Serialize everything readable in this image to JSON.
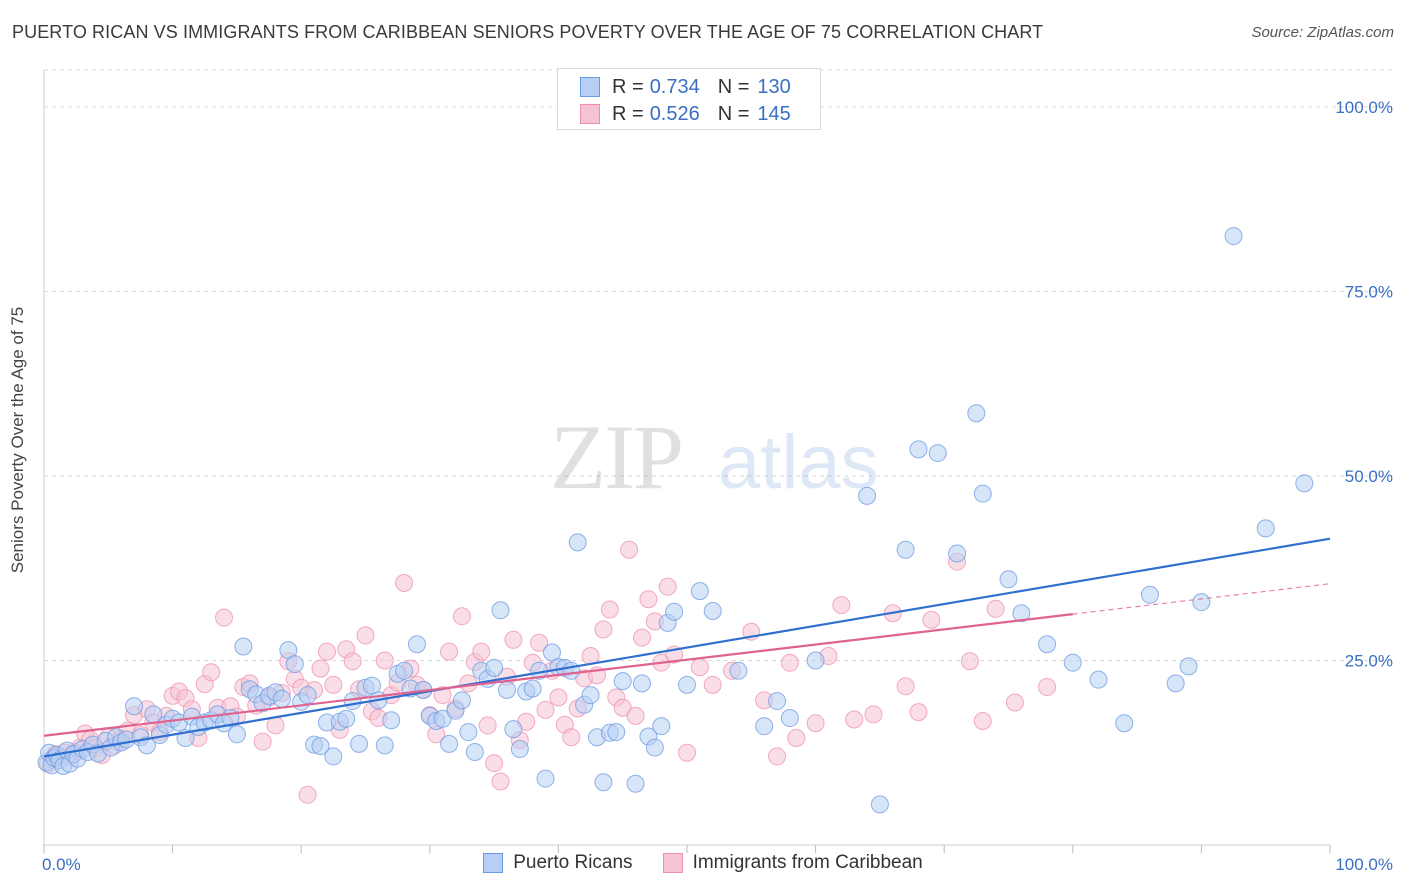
{
  "title": "PUERTO RICAN VS IMMIGRANTS FROM CARIBBEAN SENIORS POVERTY OVER THE AGE OF 75 CORRELATION CHART",
  "source": "Source: ZipAtlas.com",
  "watermark": {
    "zip": "ZIP",
    "atlas": "atlas"
  },
  "legend": {
    "rows": [
      {
        "r_label": "R =",
        "r_value": "0.734",
        "n_label": "N =",
        "n_value": "130"
      },
      {
        "r_label": "R =",
        "r_value": "0.526",
        "n_label": "N =",
        "n_value": "145"
      }
    ]
  },
  "bottom_legend": [
    "Puerto Ricans",
    "Immigrants from Caribbean"
  ],
  "colors": {
    "blue": "#6b9ae0",
    "blue_fill": "#b7cff4",
    "blue_line": "#2f6fcf",
    "pink": "#ee8fb0",
    "pink_fill": "#f6c3d4",
    "pink_line": "#e0628f",
    "axis_text": "#3a6fc4",
    "grid": "#d9d9d9"
  },
  "chart_data": {
    "type": "scatter",
    "title": "PUERTO RICAN VS IMMIGRANTS FROM CARIBBEAN SENIORS POVERTY OVER THE AGE OF 75 CORRELATION CHART",
    "xlabel": "",
    "ylabel": "Seniors Poverty Over the Age of 75",
    "xlim": [
      0,
      100
    ],
    "ylim": [
      0,
      105
    ],
    "x_tick_labels": [
      "0.0%",
      "100.0%"
    ],
    "y_tick_labels": [
      {
        "value": 100,
        "label": "100.0%"
      },
      {
        "value": 75,
        "label": "75.0%"
      },
      {
        "value": 50,
        "label": "50.0%"
      },
      {
        "value": 25,
        "label": "25.0%"
      }
    ],
    "grid": "horizontal dashed",
    "series": [
      {
        "name": "Puerto Ricans",
        "color": "#6b9ae0",
        "trend": {
          "x": [
            0,
            100
          ],
          "y": [
            12.0,
            41.5
          ],
          "dashed_from": null
        },
        "points": [
          [
            0.2,
            11.2
          ],
          [
            0.4,
            12.5
          ],
          [
            0.6,
            10.8
          ],
          [
            0.8,
            11.8
          ],
          [
            1.0,
            12.2
          ],
          [
            1.2,
            11.5
          ],
          [
            1.5,
            10.7
          ],
          [
            1.8,
            12.8
          ],
          [
            2.0,
            11.0
          ],
          [
            2.3,
            12.3
          ],
          [
            2.6,
            11.7
          ],
          [
            3.0,
            13.0
          ],
          [
            3.4,
            12.6
          ],
          [
            3.8,
            13.6
          ],
          [
            4.2,
            12.4
          ],
          [
            4.8,
            14.1
          ],
          [
            5.2,
            13.2
          ],
          [
            5.6,
            14.6
          ],
          [
            6.0,
            13.9
          ],
          [
            6.4,
            14.3
          ],
          [
            7.0,
            18.8
          ],
          [
            7.5,
            14.6
          ],
          [
            8.0,
            13.5
          ],
          [
            8.5,
            17.7
          ],
          [
            9.0,
            14.9
          ],
          [
            9.5,
            16.3
          ],
          [
            10.0,
            17.1
          ],
          [
            10.5,
            16.6
          ],
          [
            11.0,
            14.5
          ],
          [
            11.5,
            17.4
          ],
          [
            12.0,
            16.0
          ],
          [
            12.5,
            16.6
          ],
          [
            13.0,
            16.9
          ],
          [
            13.5,
            17.7
          ],
          [
            14.0,
            16.5
          ],
          [
            14.5,
            17.2
          ],
          [
            15.0,
            15.0
          ],
          [
            15.5,
            26.9
          ],
          [
            16.0,
            21.1
          ],
          [
            16.5,
            20.4
          ],
          [
            17.0,
            19.2
          ],
          [
            17.5,
            20.2
          ],
          [
            18.0,
            20.7
          ],
          [
            18.5,
            19.8
          ],
          [
            19.0,
            26.4
          ],
          [
            19.5,
            24.5
          ],
          [
            20.0,
            19.4
          ],
          [
            20.5,
            20.3
          ],
          [
            21.0,
            13.6
          ],
          [
            21.5,
            13.4
          ],
          [
            22.0,
            16.6
          ],
          [
            22.5,
            12.0
          ],
          [
            23.0,
            16.7
          ],
          [
            23.5,
            17.1
          ],
          [
            24.0,
            19.5
          ],
          [
            24.5,
            13.7
          ],
          [
            25.0,
            21.3
          ],
          [
            25.5,
            21.6
          ],
          [
            26.0,
            19.6
          ],
          [
            26.5,
            13.5
          ],
          [
            27.0,
            16.9
          ],
          [
            27.5,
            23.2
          ],
          [
            28.0,
            23.6
          ],
          [
            28.5,
            21.2
          ],
          [
            29.0,
            27.2
          ],
          [
            29.5,
            21.0
          ],
          [
            30.0,
            17.5
          ],
          [
            30.5,
            16.8
          ],
          [
            31.0,
            17.1
          ],
          [
            31.5,
            13.7
          ],
          [
            32.0,
            18.2
          ],
          [
            32.5,
            19.6
          ],
          [
            33.0,
            15.3
          ],
          [
            33.5,
            12.6
          ],
          [
            34.0,
            23.6
          ],
          [
            34.5,
            22.5
          ],
          [
            35.0,
            24.0
          ],
          [
            35.5,
            31.8
          ],
          [
            36.0,
            21.0
          ],
          [
            36.5,
            15.7
          ],
          [
            37.0,
            13.0
          ],
          [
            37.5,
            20.8
          ],
          [
            38.0,
            21.2
          ],
          [
            38.5,
            23.6
          ],
          [
            39.0,
            9.0
          ],
          [
            39.5,
            26.1
          ],
          [
            40.0,
            24.1
          ],
          [
            40.5,
            24.0
          ],
          [
            41.0,
            23.6
          ],
          [
            41.5,
            41.0
          ],
          [
            42.0,
            19.0
          ],
          [
            42.5,
            20.3
          ],
          [
            43.0,
            14.6
          ],
          [
            43.5,
            8.5
          ],
          [
            44.0,
            15.2
          ],
          [
            44.5,
            15.3
          ],
          [
            45.0,
            22.2
          ],
          [
            46.0,
            8.3
          ],
          [
            46.5,
            21.9
          ],
          [
            47.0,
            14.7
          ],
          [
            47.5,
            13.2
          ],
          [
            48.0,
            16.1
          ],
          [
            48.5,
            30.1
          ],
          [
            49.0,
            31.6
          ],
          [
            50.0,
            21.7
          ],
          [
            51.0,
            34.4
          ],
          [
            52.0,
            31.7
          ],
          [
            54.0,
            23.6
          ],
          [
            56.0,
            16.1
          ],
          [
            57.0,
            19.5
          ],
          [
            58.0,
            17.2
          ],
          [
            60.0,
            25.0
          ],
          [
            64.0,
            47.3
          ],
          [
            65.0,
            5.5
          ],
          [
            67.0,
            40.0
          ],
          [
            68.0,
            53.6
          ],
          [
            69.5,
            53.1
          ],
          [
            71.0,
            39.5
          ],
          [
            72.5,
            58.5
          ],
          [
            73.0,
            47.6
          ],
          [
            75.0,
            36.0
          ],
          [
            76.0,
            31.4
          ],
          [
            78.0,
            27.2
          ],
          [
            80.0,
            24.7
          ],
          [
            82.0,
            22.4
          ],
          [
            84.0,
            16.5
          ],
          [
            86.0,
            33.9
          ],
          [
            88.0,
            21.9
          ],
          [
            89.0,
            24.2
          ],
          [
            90.0,
            32.9
          ],
          [
            92.5,
            82.5
          ],
          [
            95.0,
            42.9
          ],
          [
            98.0,
            49.0
          ]
        ]
      },
      {
        "name": "Immigrants from Caribbean",
        "color": "#ee8fb0",
        "trend": {
          "x": [
            0,
            100
          ],
          "y": [
            14.8,
            35.4
          ],
          "dashed_from": 80
        },
        "points": [
          [
            0.3,
            11.0
          ],
          [
            0.6,
            11.6
          ],
          [
            0.9,
            12.3
          ],
          [
            1.2,
            11.9
          ],
          [
            1.6,
            12.5
          ],
          [
            2.0,
            12.0
          ],
          [
            2.4,
            12.6
          ],
          [
            2.8,
            13.2
          ],
          [
            3.2,
            15.1
          ],
          [
            3.6,
            14.3
          ],
          [
            4.0,
            13.1
          ],
          [
            4.5,
            12.2
          ],
          [
            5.0,
            14.6
          ],
          [
            5.5,
            13.5
          ],
          [
            6.0,
            14.4
          ],
          [
            6.5,
            15.5
          ],
          [
            7.0,
            17.6
          ],
          [
            7.5,
            14.9
          ],
          [
            8.0,
            18.4
          ],
          [
            8.5,
            16.6
          ],
          [
            9.0,
            15.3
          ],
          [
            9.5,
            17.5
          ],
          [
            10.0,
            20.2
          ],
          [
            10.5,
            20.8
          ],
          [
            11.0,
            19.9
          ],
          [
            11.5,
            18.4
          ],
          [
            12.0,
            14.5
          ],
          [
            12.5,
            21.8
          ],
          [
            13.0,
            23.4
          ],
          [
            13.5,
            18.6
          ],
          [
            14.0,
            30.8
          ],
          [
            14.5,
            18.8
          ],
          [
            15.0,
            17.4
          ],
          [
            15.5,
            21.4
          ],
          [
            16.0,
            21.9
          ],
          [
            16.5,
            18.9
          ],
          [
            17.0,
            14.0
          ],
          [
            17.5,
            20.0
          ],
          [
            18.0,
            16.2
          ],
          [
            18.5,
            20.6
          ],
          [
            19.0,
            24.9
          ],
          [
            19.5,
            22.5
          ],
          [
            20.0,
            21.3
          ],
          [
            20.5,
            6.8
          ],
          [
            21.0,
            21.0
          ],
          [
            21.5,
            23.9
          ],
          [
            22.0,
            26.2
          ],
          [
            22.5,
            21.7
          ],
          [
            23.0,
            15.6
          ],
          [
            23.5,
            26.5
          ],
          [
            24.0,
            24.9
          ],
          [
            24.5,
            21.1
          ],
          [
            25.0,
            28.4
          ],
          [
            25.5,
            18.1
          ],
          [
            26.0,
            17.2
          ],
          [
            26.5,
            25.0
          ],
          [
            27.0,
            20.3
          ],
          [
            27.5,
            22.0
          ],
          [
            28.0,
            35.5
          ],
          [
            28.5,
            23.9
          ],
          [
            29.0,
            21.7
          ],
          [
            29.5,
            21.0
          ],
          [
            30.0,
            17.6
          ],
          [
            30.5,
            15.0
          ],
          [
            31.0,
            20.3
          ],
          [
            31.5,
            26.2
          ],
          [
            32.0,
            18.5
          ],
          [
            32.5,
            31.0
          ],
          [
            33.0,
            21.9
          ],
          [
            33.5,
            24.8
          ],
          [
            34.0,
            26.2
          ],
          [
            34.5,
            16.2
          ],
          [
            35.0,
            11.1
          ],
          [
            35.5,
            8.6
          ],
          [
            36.0,
            22.8
          ],
          [
            36.5,
            27.8
          ],
          [
            37.0,
            14.2
          ],
          [
            37.5,
            16.7
          ],
          [
            38.0,
            24.7
          ],
          [
            38.5,
            27.4
          ],
          [
            39.0,
            18.3
          ],
          [
            39.5,
            23.6
          ],
          [
            40.0,
            20.0
          ],
          [
            40.5,
            16.3
          ],
          [
            41.0,
            14.6
          ],
          [
            41.5,
            18.5
          ],
          [
            42.0,
            22.6
          ],
          [
            42.5,
            25.6
          ],
          [
            43.0,
            23.0
          ],
          [
            43.5,
            29.2
          ],
          [
            44.0,
            31.9
          ],
          [
            44.5,
            20.0
          ],
          [
            45.0,
            18.6
          ],
          [
            45.5,
            40.0
          ],
          [
            46.0,
            17.5
          ],
          [
            46.5,
            28.1
          ],
          [
            47.0,
            33.3
          ],
          [
            47.5,
            30.3
          ],
          [
            48.0,
            24.7
          ],
          [
            48.5,
            35.0
          ],
          [
            49.0,
            25.8
          ],
          [
            50.0,
            12.5
          ],
          [
            51.0,
            24.1
          ],
          [
            52.0,
            21.7
          ],
          [
            53.5,
            23.6
          ],
          [
            55.0,
            28.9
          ],
          [
            56.0,
            19.6
          ],
          [
            57.0,
            12.0
          ],
          [
            58.0,
            24.7
          ],
          [
            58.5,
            14.5
          ],
          [
            60.0,
            16.5
          ],
          [
            61.0,
            25.6
          ],
          [
            62.0,
            32.5
          ],
          [
            63.0,
            17.0
          ],
          [
            64.5,
            17.7
          ],
          [
            66.0,
            31.4
          ],
          [
            67.0,
            21.5
          ],
          [
            68.0,
            18.0
          ],
          [
            69.0,
            30.5
          ],
          [
            71.0,
            38.4
          ],
          [
            72.0,
            24.9
          ],
          [
            73.0,
            16.8
          ],
          [
            74.0,
            32.0
          ],
          [
            75.5,
            19.3
          ],
          [
            78.0,
            21.4
          ]
        ]
      }
    ]
  }
}
